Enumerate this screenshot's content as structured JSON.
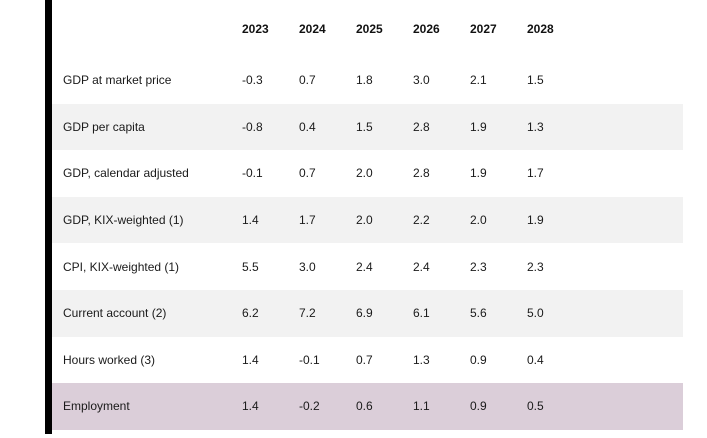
{
  "chart_data": {
    "type": "table",
    "columns": [
      "2023",
      "2024",
      "2025",
      "2026",
      "2027",
      "2028"
    ],
    "rows": [
      {
        "label": "GDP at market price",
        "values": [
          "-0.3",
          "0.7",
          "1.8",
          "3.0",
          "2.1",
          "1.5"
        ],
        "highlighted": false
      },
      {
        "label": "GDP per capita",
        "values": [
          "-0.8",
          "0.4",
          "1.5",
          "2.8",
          "1.9",
          "1.3"
        ],
        "highlighted": false
      },
      {
        "label": "GDP, calendar adjusted",
        "values": [
          "-0.1",
          "0.7",
          "2.0",
          "2.8",
          "1.9",
          "1.7"
        ],
        "highlighted": false
      },
      {
        "label": "GDP, KIX-weighted (1)",
        "values": [
          "1.4",
          "1.7",
          "2.0",
          "2.2",
          "2.0",
          "1.9"
        ],
        "highlighted": false
      },
      {
        "label": "CPI, KIX-weighted (1)",
        "values": [
          "5.5",
          "3.0",
          "2.4",
          "2.4",
          "2.3",
          "2.3"
        ],
        "highlighted": false
      },
      {
        "label": "Current account (2)",
        "values": [
          "6.2",
          "7.2",
          "6.9",
          "6.1",
          "5.6",
          "5.0"
        ],
        "highlighted": false
      },
      {
        "label": "Hours worked (3)",
        "values": [
          "1.4",
          "-0.1",
          "0.7",
          "1.3",
          "0.9",
          "0.4"
        ],
        "highlighted": false
      },
      {
        "label": "Employment",
        "values": [
          "1.4",
          "-0.2",
          "0.6",
          "1.1",
          "0.9",
          "0.5"
        ],
        "highlighted": true
      }
    ],
    "title": "",
    "layout": {
      "banded_rows": true,
      "header_bold": true
    },
    "colors": {
      "band_gray": "#f2f2f2",
      "highlight_pink": "#dbced9",
      "accent_bar_black": "#000000",
      "text": "#1a1a1a"
    }
  }
}
